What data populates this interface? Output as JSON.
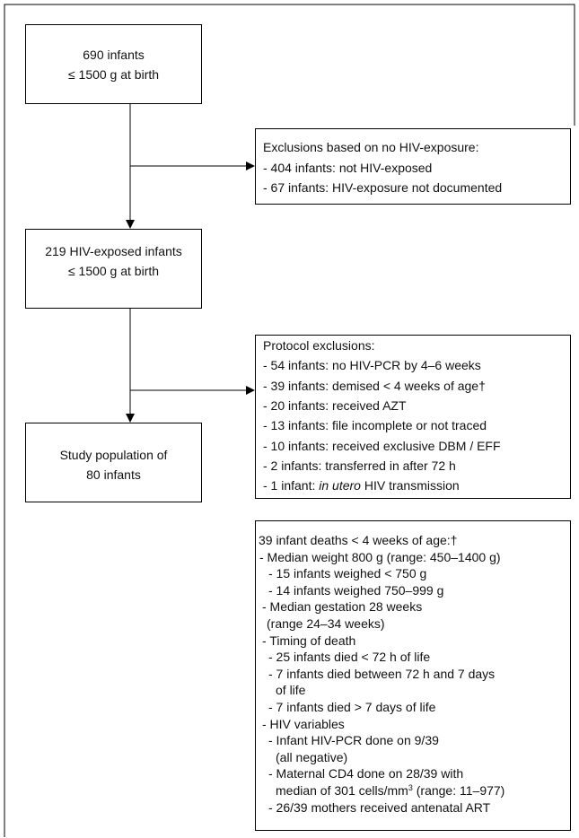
{
  "start": {
    "lines": [
      "690 infants",
      "≤ 1500 g at birth"
    ]
  },
  "exclusion_hiv": {
    "lines": [
      "Exclusions based on no HIV-exposure:",
      "- 404 infants: not HIV-exposed",
      "- 67 infants: HIV-exposure not documented"
    ]
  },
  "exposed": {
    "lines": [
      "219 HIV-exposed infants",
      "≤ 1500 g at birth"
    ]
  },
  "protocol_exclusions": {
    "lines": [
      "Protocol exclusions:",
      "- 54 infants: no HIV-PCR by 4–6 weeks",
      "- 39 infants: demised < 4 weeks of age†",
      "- 20 infants: received AZT",
      "- 13 infants: file incomplete or not traced",
      "- 10 infants: received exclusive DBM / EFF",
      "- 2 infants: transferred in after 72 h",
      [
        "- 1 infant: ",
        "in utero",
        " HIV transmission"
      ]
    ]
  },
  "study_population": {
    "lines": [
      "Study population of",
      "80 infants"
    ]
  },
  "infant_deaths": {
    "lines": [
      "39 infant deaths < 4 weeks of age:†",
      "- Median weight 800 g (range: 450–1400 g)",
      "- 15 infants weighed < 750 g",
      "- 14 infants weighed 750–999 g",
      "- Median gestation 28 weeks",
      "(range 24–34 weeks)",
      "- Timing of death",
      "- 25 infants died < 72 h of life",
      "- 7 infants died between 72 h and 7 days",
      "of life",
      "- 7 infants died > 7 days of life",
      "- HIV variables",
      "- Infant HIV-PCR done on 9/39",
      "(all negative)",
      "- Maternal CD4 done on 28/39 with",
      [
        "median of 301 cells/mm",
        "3",
        " (range: 11–977)"
      ],
      "- 26/39 mothers received antenatal ART"
    ]
  }
}
